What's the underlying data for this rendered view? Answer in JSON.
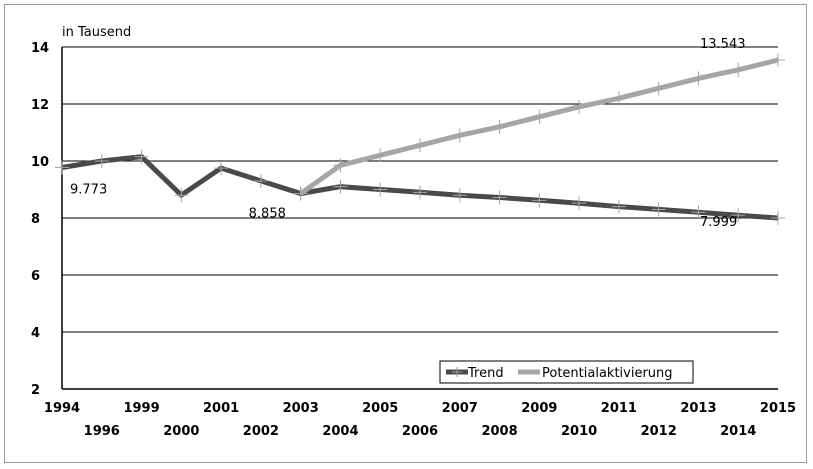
{
  "chart_data": {
    "type": "line",
    "unit_label": "in Tausend",
    "x": [
      "1994",
      "1996",
      "1999",
      "2000",
      "2001",
      "2002",
      "2003",
      "2004",
      "2005",
      "2006",
      "2007",
      "2008",
      "2009",
      "2010",
      "2011",
      "2012",
      "2013",
      "2014",
      "2015"
    ],
    "ylim": [
      2,
      14
    ],
    "yticks": [
      2,
      4,
      6,
      8,
      10,
      12,
      14
    ],
    "grid": true,
    "legend_position": "bottom-right",
    "series": [
      {
        "name": "Trend",
        "color": "#4a4a4a",
        "values": [
          9.773,
          10.0,
          10.15,
          8.8,
          9.75,
          9.3,
          8.858,
          9.1,
          9.0,
          8.9,
          8.8,
          8.72,
          8.62,
          8.52,
          8.4,
          8.3,
          8.2,
          8.1,
          7.999
        ]
      },
      {
        "name": "Potentialaktivierung",
        "color": "#a6a6a6",
        "values": [
          null,
          null,
          null,
          null,
          null,
          null,
          8.858,
          9.85,
          10.2,
          10.55,
          10.9,
          11.2,
          11.55,
          11.9,
          12.2,
          12.55,
          12.9,
          13.2,
          13.543
        ]
      }
    ],
    "data_labels": [
      {
        "series": 0,
        "index": 0,
        "text": "9.773"
      },
      {
        "series": 0,
        "index": 6,
        "text": "8.858"
      },
      {
        "series": 0,
        "index": 18,
        "text": "7.999"
      },
      {
        "series": 1,
        "index": 18,
        "text": "13.543"
      }
    ]
  }
}
